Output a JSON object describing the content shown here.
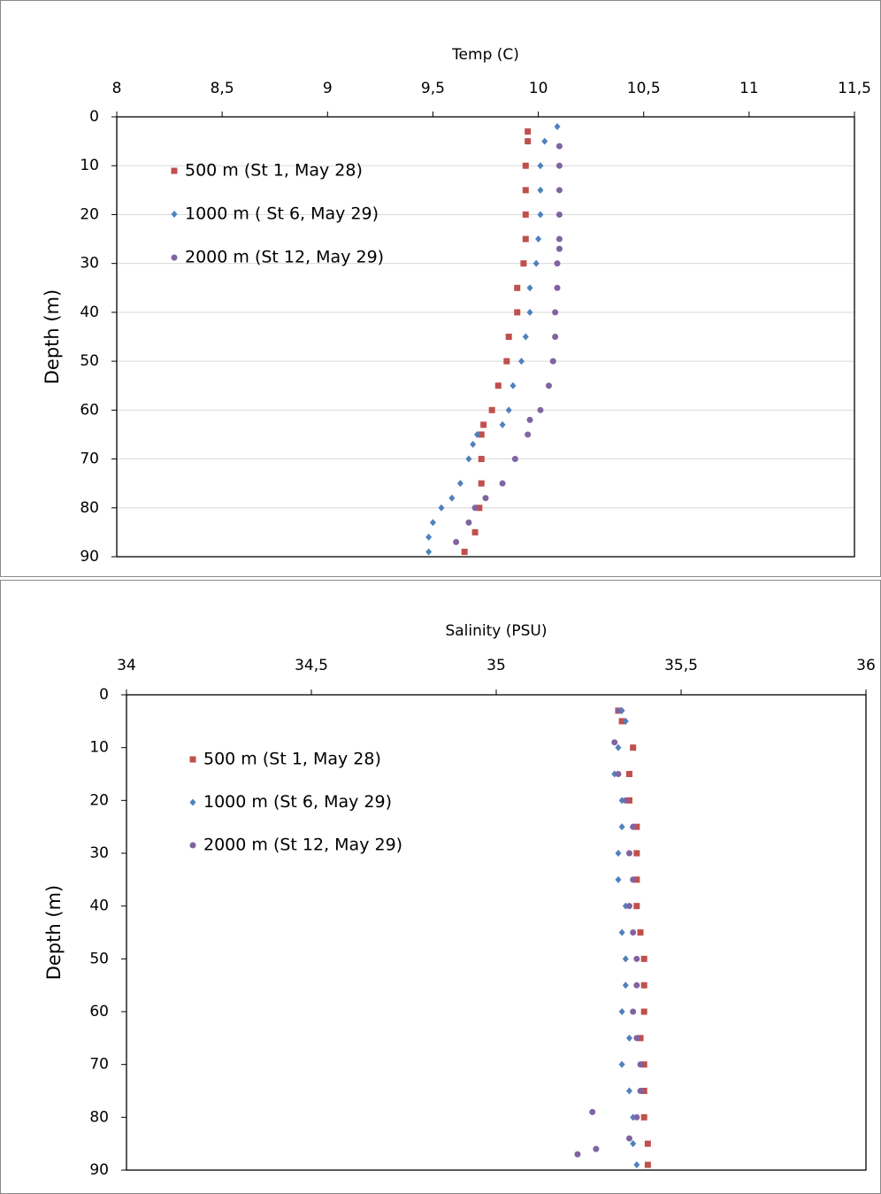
{
  "chart_data": [
    {
      "type": "scatter",
      "xlabel": "Temp (C)",
      "ylabel": "Depth (m)",
      "xlim": [
        8,
        11.5
      ],
      "xticks": [
        8,
        {
          "value": 8.5,
          "label": "8,5"
        },
        9,
        {
          "value": 9.5,
          "label": "9,5"
        },
        10,
        {
          "value": 10.5,
          "label": "10,5"
        },
        11,
        {
          "value": 11.5,
          "label": "11,5"
        }
      ],
      "ylim": [
        0,
        90
      ],
      "yticks": [
        0,
        10,
        20,
        30,
        40,
        50,
        60,
        70,
        80,
        90
      ],
      "y_reversed": true,
      "grid": true,
      "series": [
        {
          "name": "500 m (St 1, May 28)",
          "color": "#c0504d",
          "marker": "square",
          "x": [
            9.95,
            9.95,
            9.94,
            9.94,
            9.94,
            9.94,
            9.93,
            9.9,
            9.9,
            9.86,
            9.85,
            9.81,
            9.78,
            9.74,
            9.73,
            9.73,
            9.73,
            9.72,
            9.7,
            9.65
          ],
          "values": [
            3,
            5,
            10,
            15,
            20,
            25,
            30,
            35,
            40,
            45,
            50,
            55,
            60,
            63,
            65,
            70,
            75,
            80,
            85,
            89
          ]
        },
        {
          "name": "1000 m ( St 6, May 29)",
          "color": "#4f81bd",
          "marker": "diamond",
          "x": [
            10.09,
            10.03,
            10.01,
            10.01,
            10.01,
            10.0,
            9.99,
            9.96,
            9.96,
            9.94,
            9.92,
            9.88,
            9.86,
            9.83,
            9.71,
            9.69,
            9.67,
            9.63,
            9.59,
            9.54,
            9.5,
            9.48,
            9.48
          ],
          "values": [
            2,
            5,
            10,
            15,
            20,
            25,
            30,
            35,
            40,
            45,
            50,
            55,
            60,
            63,
            65,
            67,
            70,
            75,
            78,
            80,
            83,
            86,
            89
          ]
        },
        {
          "name": "2000 m (St 12, May 29)",
          "color": "#8064a2",
          "marker": "circle",
          "x": [
            10.1,
            10.1,
            10.1,
            10.1,
            10.1,
            10.1,
            10.09,
            10.09,
            10.08,
            10.08,
            10.07,
            10.05,
            10.01,
            9.96,
            9.95,
            9.89,
            9.83,
            9.75,
            9.7,
            9.67,
            9.61
          ],
          "values": [
            6,
            10,
            15,
            20,
            25,
            27,
            30,
            35,
            40,
            45,
            50,
            55,
            60,
            62,
            65,
            70,
            75,
            78,
            80,
            83,
            87
          ]
        }
      ]
    },
    {
      "type": "scatter",
      "xlabel": "Salinity (PSU)",
      "ylabel": "Depth (m)",
      "xlim": [
        34,
        36
      ],
      "xticks": [
        34,
        {
          "value": 34.5,
          "label": "34,5"
        },
        35,
        {
          "value": 35.5,
          "label": "35,5"
        },
        36
      ],
      "ylim": [
        0,
        90
      ],
      "yticks": [
        0,
        10,
        20,
        30,
        40,
        50,
        60,
        70,
        80,
        90
      ],
      "y_reversed": true,
      "grid": false,
      "series": [
        {
          "name": "500 m (St 1, May 28)",
          "color": "#c0504d",
          "marker": "square",
          "x": [
            35.33,
            35.34,
            35.37,
            35.36,
            35.36,
            35.38,
            35.38,
            35.38,
            35.38,
            35.39,
            35.4,
            35.4,
            35.4,
            35.39,
            35.4,
            35.4,
            35.4,
            35.41,
            35.41
          ],
          "values": [
            3,
            5,
            10,
            15,
            20,
            25,
            30,
            35,
            40,
            45,
            50,
            55,
            60,
            65,
            70,
            75,
            80,
            85,
            89
          ]
        },
        {
          "name": "1000 m (St 6, May 29)",
          "color": "#4f81bd",
          "marker": "diamond",
          "x": [
            35.34,
            35.35,
            35.33,
            35.32,
            35.34,
            35.34,
            35.33,
            35.33,
            35.35,
            35.34,
            35.35,
            35.35,
            35.34,
            35.36,
            35.34,
            35.36,
            35.37,
            35.37,
            35.38
          ],
          "values": [
            3,
            5,
            10,
            15,
            20,
            25,
            30,
            35,
            40,
            45,
            50,
            55,
            60,
            65,
            70,
            75,
            80,
            85,
            89
          ]
        },
        {
          "name": "2000 m (St 12, May 29)",
          "color": "#8064a2",
          "marker": "circle",
          "x": [
            35.33,
            35.32,
            35.33,
            35.35,
            35.37,
            35.36,
            35.37,
            35.36,
            35.37,
            35.38,
            35.38,
            35.37,
            35.38,
            35.39,
            35.39,
            35.26,
            35.38,
            35.36,
            35.27,
            35.22
          ],
          "values": [
            3,
            9,
            15,
            20,
            25,
            30,
            35,
            40,
            45,
            50,
            55,
            60,
            65,
            70,
            75,
            79,
            80,
            84,
            86,
            87
          ]
        }
      ]
    }
  ]
}
